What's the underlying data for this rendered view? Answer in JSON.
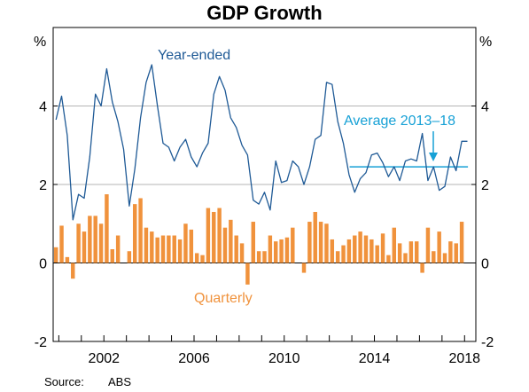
{
  "chart_data": {
    "type": "bar",
    "title": "GDP Growth",
    "unit_left": "%",
    "unit_right": "%",
    "ylim": [
      -2,
      6
    ],
    "yticks": [
      -2,
      0,
      2,
      4
    ],
    "ytick_labels": [
      "-2",
      "0",
      "2",
      "4"
    ],
    "xlim": [
      1999.75,
      2018.5
    ],
    "xticks": [
      2002,
      2006,
      2010,
      2014,
      2018
    ],
    "xtick_labels": [
      "2002",
      "2006",
      "2010",
      "2014",
      "2018"
    ],
    "grid": true,
    "source_label": "Source:",
    "source_value": "ABS",
    "colors": {
      "year_ended": "#1f5a96",
      "quarterly": "#f0923c",
      "average": "#17a1d6",
      "grid": "#b5b5b5"
    },
    "series": [
      {
        "name": "Year-ended",
        "kind": "line",
        "x": [
          1999.875,
          2000.125,
          2000.375,
          2000.625,
          2000.875,
          2001.125,
          2001.375,
          2001.625,
          2001.875,
          2002.125,
          2002.375,
          2002.625,
          2002.875,
          2003.125,
          2003.375,
          2003.625,
          2003.875,
          2004.125,
          2004.375,
          2004.625,
          2004.875,
          2005.125,
          2005.375,
          2005.625,
          2005.875,
          2006.125,
          2006.375,
          2006.625,
          2006.875,
          2007.125,
          2007.375,
          2007.625,
          2007.875,
          2008.125,
          2008.375,
          2008.625,
          2008.875,
          2009.125,
          2009.375,
          2009.625,
          2009.875,
          2010.125,
          2010.375,
          2010.625,
          2010.875,
          2011.125,
          2011.375,
          2011.625,
          2011.875,
          2012.125,
          2012.375,
          2012.625,
          2012.875,
          2013.125,
          2013.375,
          2013.625,
          2013.875,
          2014.125,
          2014.375,
          2014.625,
          2014.875,
          2015.125,
          2015.375,
          2015.625,
          2015.875,
          2016.125,
          2016.375,
          2016.625,
          2016.875,
          2017.125,
          2017.375,
          2017.625,
          2017.875,
          2018.125
        ],
        "values": [
          3.65,
          4.25,
          3.25,
          1.1,
          1.75,
          1.65,
          2.7,
          4.3,
          4.0,
          4.95,
          4.1,
          3.6,
          2.9,
          1.45,
          2.4,
          3.7,
          4.6,
          5.05,
          4.0,
          3.05,
          2.95,
          2.6,
          2.95,
          3.15,
          2.7,
          2.45,
          2.8,
          3.05,
          4.3,
          4.75,
          4.4,
          3.7,
          3.45,
          3.0,
          2.75,
          1.6,
          1.5,
          1.8,
          1.35,
          2.6,
          2.05,
          2.1,
          2.6,
          2.45,
          2.0,
          2.45,
          3.15,
          3.25,
          4.6,
          4.55,
          3.6,
          3.05,
          2.25,
          1.8,
          2.15,
          2.3,
          2.75,
          2.8,
          2.55,
          2.2,
          2.45,
          2.1,
          2.6,
          2.65,
          2.6,
          3.3,
          2.1,
          2.45,
          1.85,
          1.95,
          2.7,
          2.35,
          3.1,
          3.1
        ]
      },
      {
        "name": "Quarterly",
        "kind": "bar",
        "x": [
          1999.875,
          2000.125,
          2000.375,
          2000.625,
          2000.875,
          2001.125,
          2001.375,
          2001.625,
          2001.875,
          2002.125,
          2002.375,
          2002.625,
          2002.875,
          2003.125,
          2003.375,
          2003.625,
          2003.875,
          2004.125,
          2004.375,
          2004.625,
          2004.875,
          2005.125,
          2005.375,
          2005.625,
          2005.875,
          2006.125,
          2006.375,
          2006.625,
          2006.875,
          2007.125,
          2007.375,
          2007.625,
          2007.875,
          2008.125,
          2008.375,
          2008.625,
          2008.875,
          2009.125,
          2009.375,
          2009.625,
          2009.875,
          2010.125,
          2010.375,
          2010.625,
          2010.875,
          2011.125,
          2011.375,
          2011.625,
          2011.875,
          2012.125,
          2012.375,
          2012.625,
          2012.875,
          2013.125,
          2013.375,
          2013.625,
          2013.875,
          2014.125,
          2014.375,
          2014.625,
          2014.875,
          2015.125,
          2015.375,
          2015.625,
          2015.875,
          2016.125,
          2016.375,
          2016.625,
          2016.875,
          2017.125,
          2017.375,
          2017.625,
          2017.875,
          2018.125
        ],
        "values": [
          0.4,
          0.95,
          0.15,
          -0.4,
          1.0,
          0.8,
          1.2,
          1.2,
          1.0,
          1.75,
          0.35,
          0.7,
          0.0,
          0.3,
          1.5,
          1.65,
          0.9,
          0.8,
          0.65,
          0.7,
          0.7,
          0.7,
          0.6,
          1.0,
          0.85,
          0.25,
          0.2,
          1.4,
          1.3,
          1.4,
          0.9,
          1.1,
          0.7,
          0.5,
          -0.55,
          1.05,
          0.3,
          0.3,
          0.7,
          0.55,
          0.6,
          0.65,
          0.9,
          0.0,
          -0.25,
          1.05,
          1.3,
          1.05,
          1.0,
          0.6,
          0.3,
          0.45,
          0.6,
          0.7,
          0.8,
          0.7,
          0.6,
          0.45,
          0.75,
          0.2,
          0.9,
          0.5,
          0.25,
          0.55,
          0.55,
          -0.25,
          0.9,
          0.3,
          0.8,
          0.25,
          0.55,
          0.5,
          1.05,
          0.0
        ]
      }
    ],
    "average": {
      "label": "Average 2013–18",
      "value": 2.45,
      "x_start": 2012.9,
      "x_end": 2018.15
    },
    "annotations": {
      "year_ended_label": "Year-ended",
      "quarterly_label": "Quarterly"
    }
  }
}
